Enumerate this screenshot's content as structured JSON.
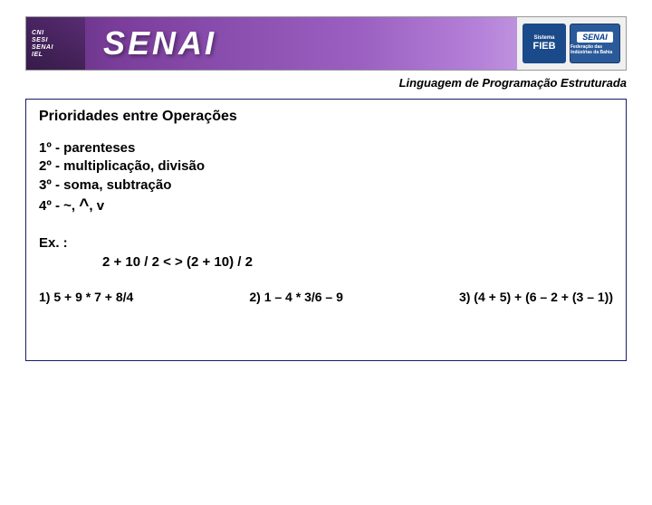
{
  "header": {
    "left_labels": [
      "CNI",
      "SESI",
      "SENAI",
      "IEL"
    ],
    "main_logo": "SENAI",
    "sistema_label": "Sistema",
    "fieb_label": "FIEB",
    "senai_badge": "SENAI",
    "senai_badge_sub": "Federação das Indústrias da Bahia"
  },
  "subtitle": "Linguagem de Programação Estruturada",
  "content": {
    "title": "Prioridades entre Operações",
    "priorities": {
      "p1": "1º - parenteses",
      "p2": "2º - multiplicação, divisão",
      "p3": "3º - soma, subtração",
      "p4_prefix": "4º - ~, ",
      "p4_caret": "^",
      "p4_suffix": ", v"
    },
    "example_label": "Ex. :",
    "example_expr": "2 + 10 / 2 < >    (2 + 10) / 2",
    "exercises": {
      "e1": "1) 5 + 9 * 7 + 8/4",
      "e2": "2) 1 – 4 * 3/6 – 9",
      "e3": "3) (4 + 5) + (6 – 2 + (3 – 1))"
    }
  }
}
